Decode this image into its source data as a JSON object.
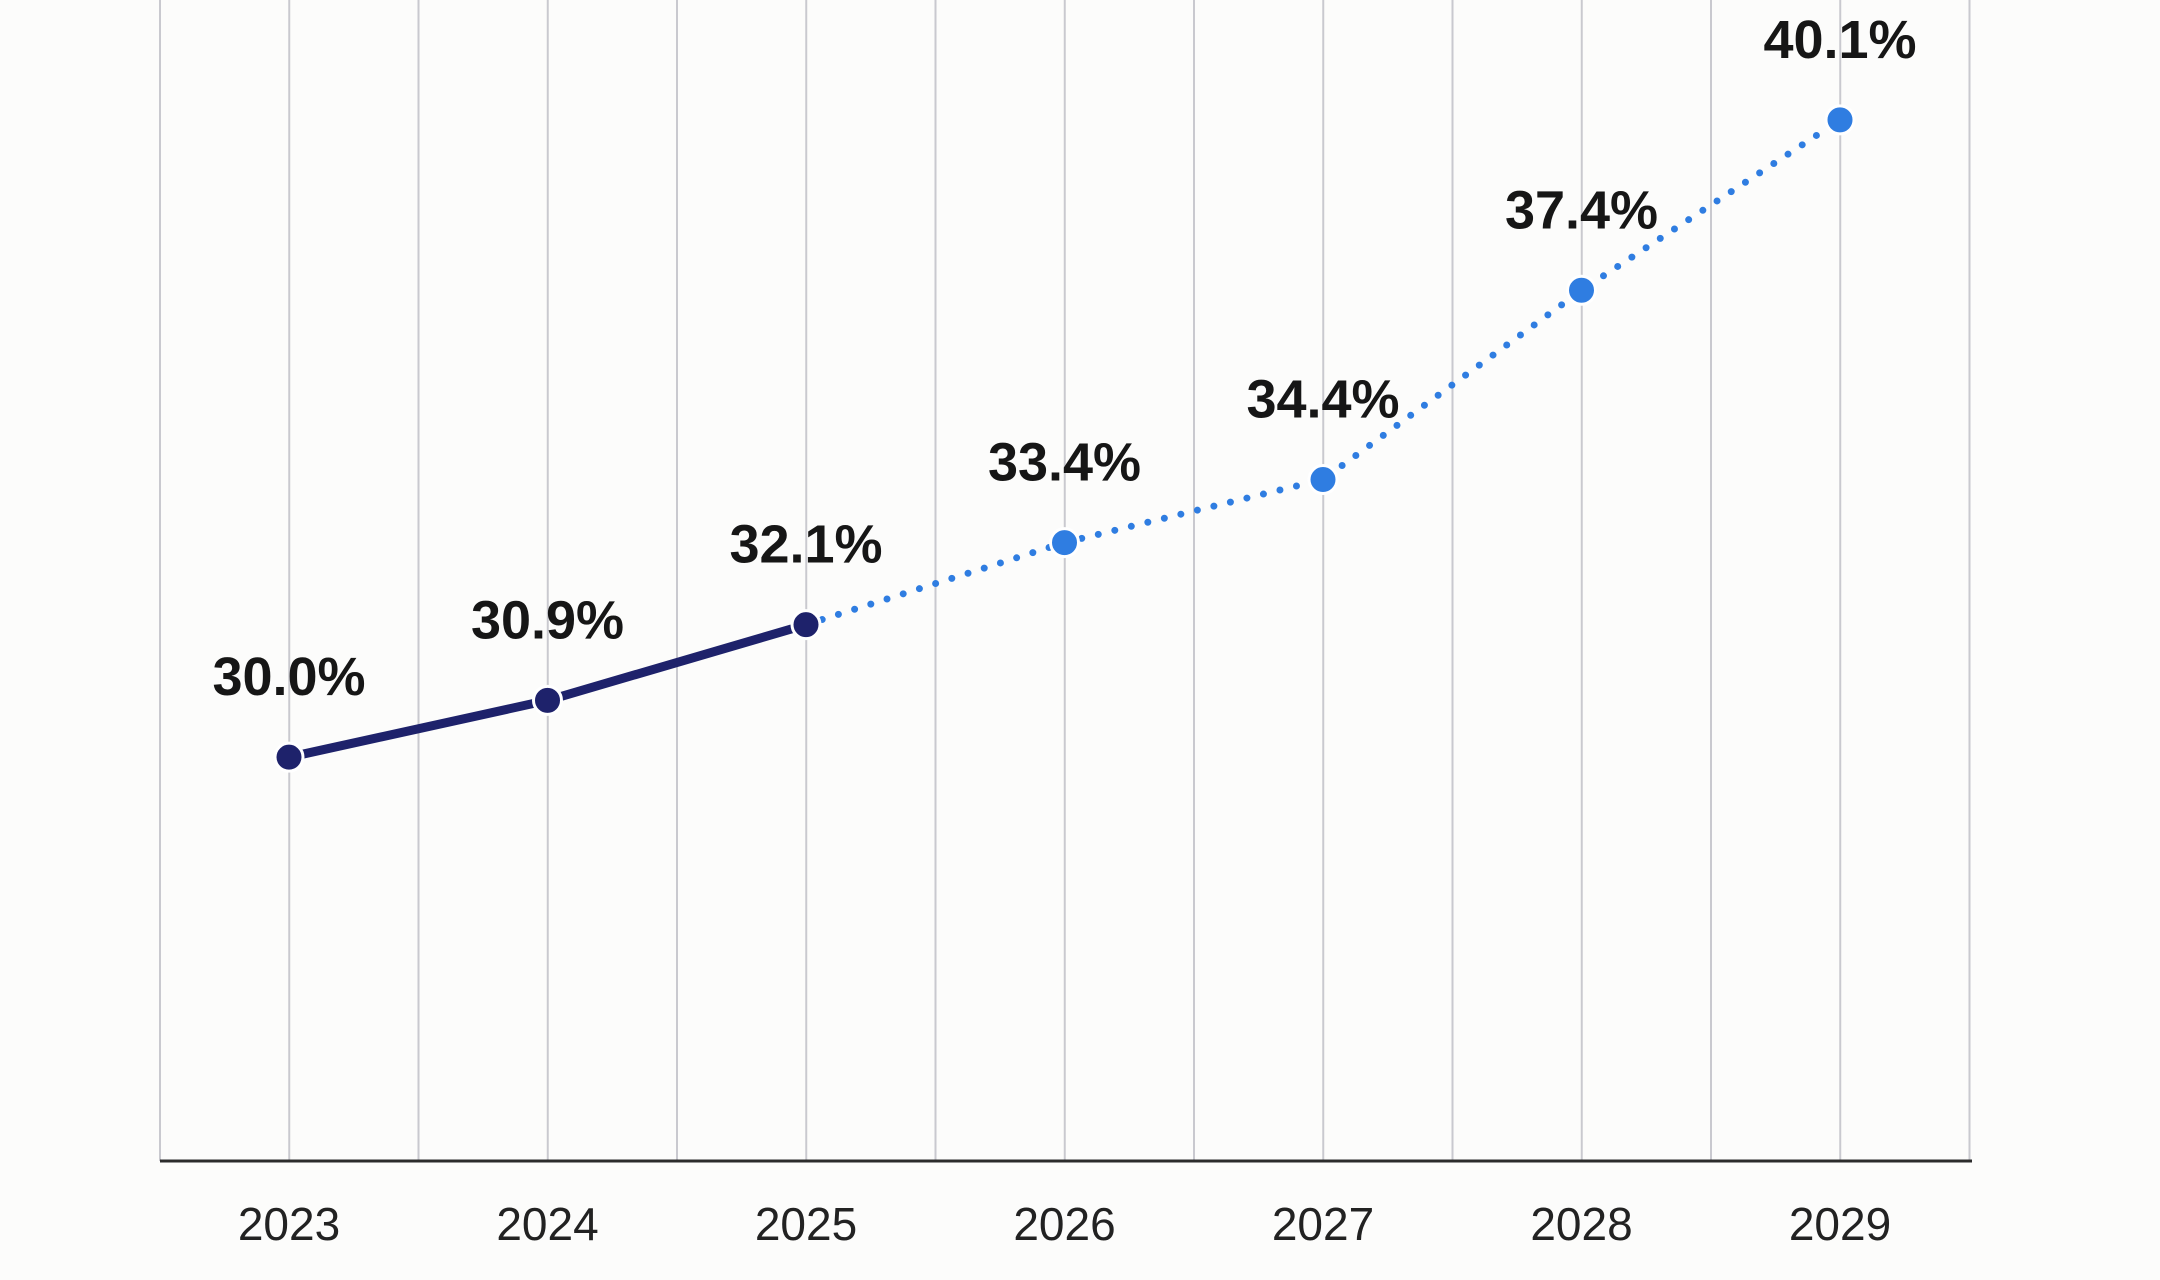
{
  "chart_data": {
    "type": "line",
    "title": "",
    "xlabel": "",
    "ylabel": "",
    "categories": [
      "2023",
      "2024",
      "2025",
      "2026",
      "2027",
      "2028",
      "2029"
    ],
    "series": [
      {
        "values": [
          30.0,
          30.9,
          32.1,
          null,
          null,
          null,
          null
        ],
        "line_style": "solid",
        "color": "#1e226b"
      },
      {
        "values": [
          null,
          null,
          32.1,
          33.4,
          34.4,
          37.4,
          40.1
        ],
        "line_style": "dotted",
        "color": "#2f7de1"
      }
    ],
    "data_labels": [
      "30.0%",
      "30.9%",
      "32.1%",
      "33.4%",
      "34.4%",
      "37.4%",
      "40.1%"
    ],
    "ylim": [
      23.6,
      42.0
    ],
    "vertical_grid": true,
    "horizontal_grid": false,
    "legend": "none"
  }
}
